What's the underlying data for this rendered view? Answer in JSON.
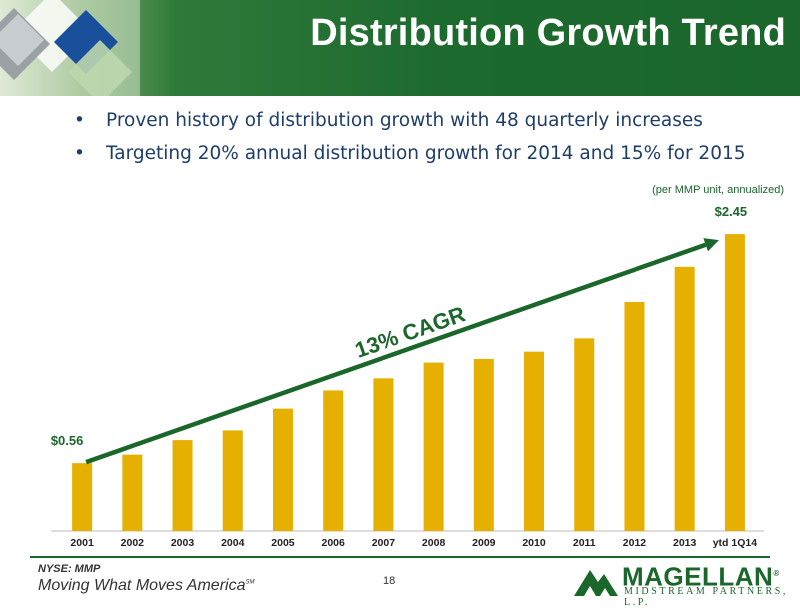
{
  "slide": {
    "title": "Distribution Growth Trend",
    "bullets": [
      "Proven history of distribution growth with 48 quarterly increases",
      "Targeting 20% annual distribution growth for 2014 and 15% for 2015"
    ],
    "units_note": "(per MMP unit, annualized)",
    "page_number": "18"
  },
  "footer": {
    "ticker": "NYSE: MMP",
    "tagline": "Moving What Moves America",
    "tagline_mark": "SM",
    "logo_name": "MAGELLAN",
    "logo_mark": "®",
    "logo_sub": "MIDSTREAM PARTNERS, L.P."
  },
  "colors": {
    "brand_green": "#1a662b",
    "bar": "#e6b000",
    "text_blue": "#1f3d6b"
  },
  "chart_data": {
    "type": "bar",
    "categories": [
      "2001",
      "2002",
      "2003",
      "2004",
      "2005",
      "2006",
      "2007",
      "2008",
      "2009",
      "2010",
      "2011",
      "2012",
      "2013",
      "ytd 1Q14"
    ],
    "values": [
      0.56,
      0.63,
      0.75,
      0.83,
      1.01,
      1.16,
      1.26,
      1.39,
      1.42,
      1.48,
      1.59,
      1.89,
      2.18,
      2.45
    ],
    "value_labels": [
      {
        "index": 0,
        "text": "$0.56"
      },
      {
        "index": 13,
        "text": "$2.45"
      }
    ],
    "annotation": {
      "text": "13% CAGR",
      "type": "trend-arrow",
      "from_index": 0,
      "to_index": 13
    },
    "ylim": [
      0,
      2.55
    ],
    "grid": false,
    "legend": "none"
  }
}
